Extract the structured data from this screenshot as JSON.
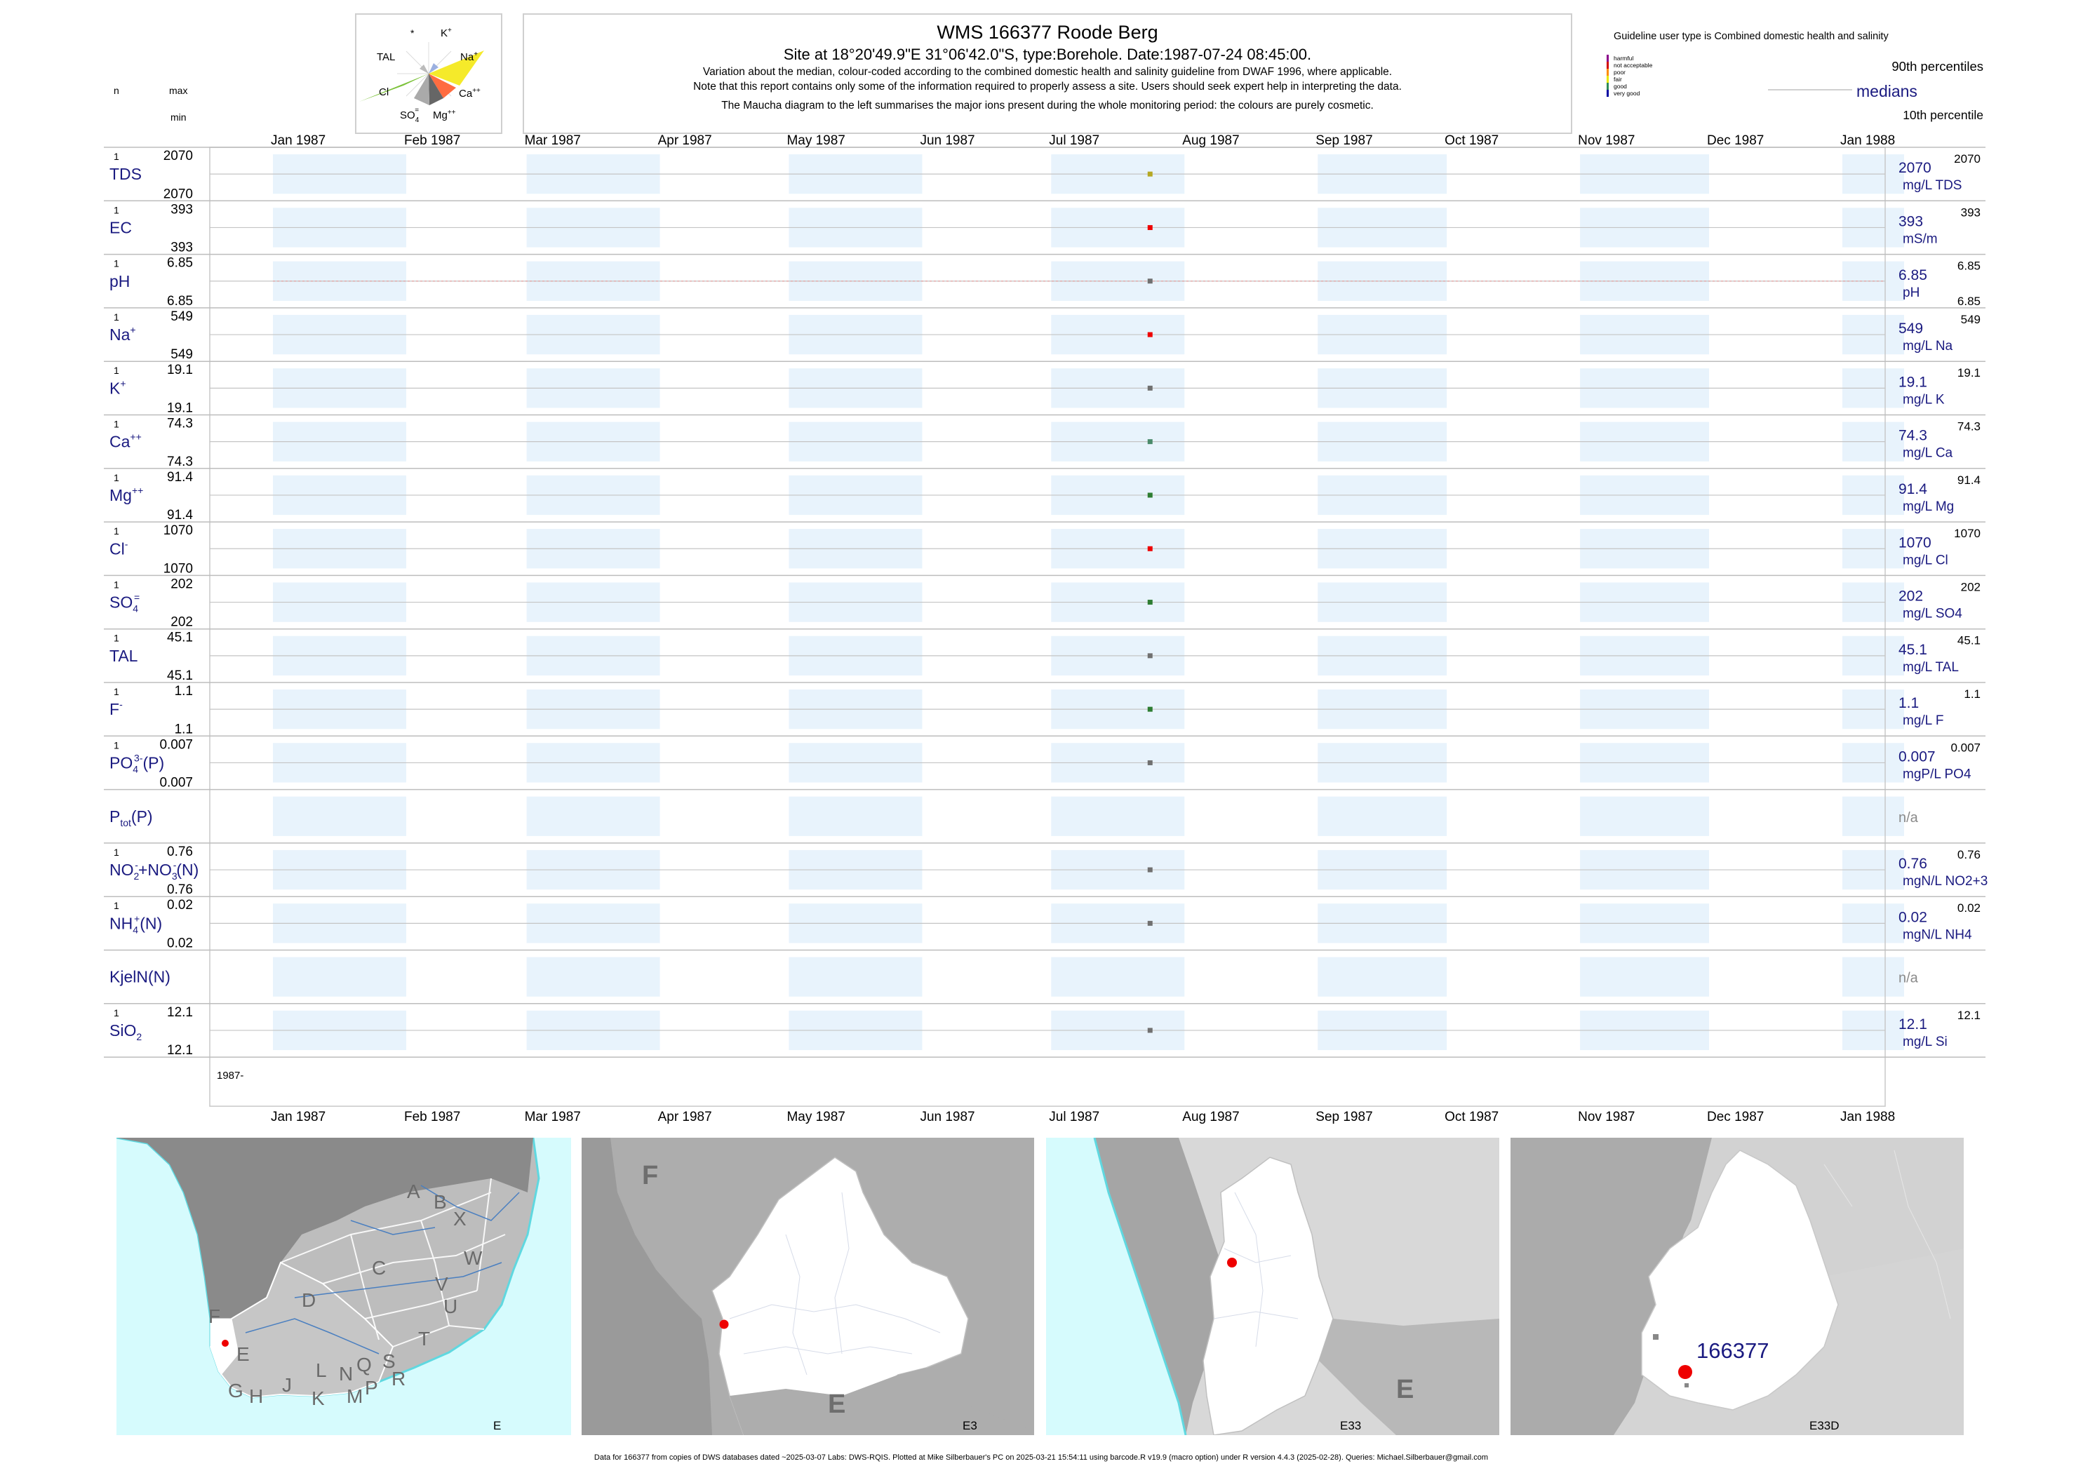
{
  "header": {
    "title": "WMS 166377  Roode Berg",
    "subtitle": "Site at 18°20'49.9\"E 31°06'42.0\"S, type:Borehole. Date:1987-07-24 08:45:00.",
    "note1": "Variation about the median,  colour-coded according to the combined domestic health and salinity guideline from DWAF 1996, where applicable.",
    "note2": "Note that this report contains only some of the information required to properly assess a site. Users should seek expert help in interpreting the data.",
    "note3": "The Maucha diagram to the left summarises the major ions present during the whole monitoring period: the colours are purely cosmetic."
  },
  "left_key": {
    "n": "n",
    "max": "max",
    "min": "min"
  },
  "maucha": {
    "labels": [
      "*",
      "K",
      "TAL",
      "Na",
      "Cl",
      "Ca",
      "SO",
      "Mg"
    ],
    "label_superscripts": {
      "K": "+",
      "Na": "+",
      "Ca": "++",
      "SO": "=",
      "Mg": "++"
    },
    "label_subscripts": {
      "SO": "4"
    }
  },
  "legend": {
    "guideline_title": "Guideline user type is Combined domestic health and salinity",
    "classes": [
      "harmful",
      "not acceptable",
      "poor",
      "fair",
      "good",
      "very good"
    ],
    "class_colors": [
      "#8b008b",
      "#d00000",
      "#ff8c00",
      "#e8e800",
      "#2e8b57",
      "#0000a0"
    ],
    "p90": "90th percentiles",
    "medians": "medians",
    "p10": "10th percentile"
  },
  "colors": {
    "band": "#e8f3fc",
    "navy": "#1a1a80",
    "grid": "#c8c8c8",
    "sea": "#d6fbfd",
    "sea_edge": "#5fd8e0",
    "land_dark": "#a8a8a8",
    "land_white": "#ffffff",
    "site": "#ee0000"
  },
  "chart_data": {
    "type": "scatter",
    "x_axis": {
      "start": "1987-01-01",
      "end": "1988-01-01",
      "tick_dates": [
        "1987-01-01",
        "1987-02-01",
        "1987-03-01",
        "1987-04-01",
        "1987-05-01",
        "1987-06-01",
        "1987-07-01",
        "1987-08-01",
        "1987-09-01",
        "1987-10-01",
        "1987-11-01",
        "1987-12-01",
        "1988-01-01"
      ],
      "tick_labels": [
        "Jan 1987",
        "Feb 1987",
        "Mar 1987",
        "Apr 1987",
        "May 1987",
        "Jun 1987",
        "Jul 1987",
        "Aug 1987",
        "Sep 1987",
        "Oct 1987",
        "Nov 1987",
        "Dec 1987",
        "Jan 1988"
      ]
    },
    "sample_date": "1987-07-24",
    "year_label": "1987-",
    "panels": [
      {
        "label": "TDS",
        "n": "1",
        "max": "2070",
        "min": "2070",
        "value": 2070,
        "value_text": "2070",
        "unit": "mg/L TDS",
        "p90": "2070",
        "p10": "",
        "color": "#b5a823",
        "ph_line": false
      },
      {
        "label": "EC",
        "n": "1",
        "max": "393",
        "min": "393",
        "value": 393,
        "value_text": "393",
        "unit": "mS/m",
        "p90": "393",
        "p10": "",
        "color": "#ee0000",
        "ph_line": false
      },
      {
        "label": "pH",
        "n": "1",
        "max": "6.85",
        "min": "6.85",
        "value": 6.85,
        "value_text": "6.85",
        "unit": "pH",
        "p90": "6.85",
        "p10": "6.85",
        "color": "#707070",
        "ph_line": true
      },
      {
        "label": "Na",
        "sup": "+",
        "n": "1",
        "max": "549",
        "min": "549",
        "value": 549,
        "value_text": "549",
        "unit": "mg/L Na",
        "p90": "549",
        "p10": "",
        "color": "#ee0000",
        "ph_line": false
      },
      {
        "label": "K",
        "sup": "+",
        "n": "1",
        "max": "19.1",
        "min": "19.1",
        "value": 19.1,
        "value_text": "19.1",
        "unit": "mg/L K",
        "p90": "19.1",
        "p10": "",
        "color": "#707070",
        "ph_line": false
      },
      {
        "label": "Ca",
        "sup": "++",
        "n": "1",
        "max": "74.3",
        "min": "74.3",
        "value": 74.3,
        "value_text": "74.3",
        "unit": "mg/L Ca",
        "p90": "74.3",
        "p10": "",
        "color": "#4a8a6a",
        "ph_line": false
      },
      {
        "label": "Mg",
        "sup": "++",
        "n": "1",
        "max": "91.4",
        "min": "91.4",
        "value": 91.4,
        "value_text": "91.4",
        "unit": "mg/L Mg",
        "p90": "91.4",
        "p10": "",
        "color": "#2e7d32",
        "ph_line": false
      },
      {
        "label": "Cl",
        "sup": "-",
        "n": "1",
        "max": "1070",
        "min": "1070",
        "value": 1070,
        "value_text": "1070",
        "unit": "mg/L Cl",
        "p90": "1070",
        "p10": "",
        "color": "#ee0000",
        "ph_line": false
      },
      {
        "label": "SO",
        "sub": "4",
        "sup": "=",
        "n": "1",
        "max": "202",
        "min": "202",
        "value": 202,
        "value_text": "202",
        "unit": "mg/L SO4",
        "p90": "202",
        "p10": "",
        "color": "#2e7d32",
        "ph_line": false
      },
      {
        "label": "TAL",
        "n": "1",
        "max": "45.1",
        "min": "45.1",
        "value": 45.1,
        "value_text": "45.1",
        "unit": "mg/L TAL",
        "p90": "45.1",
        "p10": "",
        "color": "#707070",
        "ph_line": false
      },
      {
        "label": "F",
        "sup": "-",
        "n": "1",
        "max": "1.1",
        "min": "1.1",
        "value": 1.1,
        "value_text": "1.1",
        "unit": "mg/L F",
        "p90": "1.1",
        "p10": "",
        "color": "#2e7d32",
        "ph_line": false
      },
      {
        "label": "PO",
        "sub": "4",
        "sup": "3-",
        "suffix": "(P)",
        "n": "1",
        "max": "0.007",
        "min": "0.007",
        "value": 0.007,
        "value_text": "0.007",
        "unit": "mgP/L PO4",
        "p90": "0.007",
        "p10": "",
        "color": "#707070",
        "ph_line": false
      },
      {
        "label": "P",
        "sub": "tot",
        "suffix": "(P)",
        "n": "",
        "max": "",
        "min": "",
        "value": null,
        "value_text": "n/a",
        "unit": "",
        "p90": "",
        "p10": "",
        "color": "#707070",
        "ph_line": false
      },
      {
        "label": "NO",
        "sub": "2",
        "sup": "-",
        "suffix": "+NO",
        "suffix_sub": "3",
        "suffix_sup": "-",
        "suffix2": "(N)",
        "n": "1",
        "max": "0.76",
        "min": "0.76",
        "value": 0.76,
        "value_text": "0.76",
        "unit": "mgN/L NO2+3",
        "p90": "0.76",
        "p10": "",
        "color": "#707070",
        "ph_line": false
      },
      {
        "label": "NH",
        "sub": "4",
        "sup": "+",
        "suffix": "(N)",
        "n": "1",
        "max": "0.02",
        "min": "0.02",
        "value": 0.02,
        "value_text": "0.02",
        "unit": "mgN/L NH4",
        "p90": "0.02",
        "p10": "",
        "color": "#707070",
        "ph_line": false
      },
      {
        "label": "KjelN(N)",
        "n": "",
        "max": "",
        "min": "",
        "value": null,
        "value_text": "n/a",
        "unit": "",
        "p90": "",
        "p10": "",
        "color": "#707070",
        "ph_line": false
      },
      {
        "label": "SiO",
        "sub": "2",
        "n": "1",
        "max": "12.1",
        "min": "12.1",
        "value": 12.1,
        "value_text": "12.1",
        "unit": "mg/L Si",
        "p90": "12.1",
        "p10": "",
        "color": "#707070",
        "ph_line": false
      }
    ]
  },
  "maps": {
    "map1": {
      "label": "E",
      "regions": [
        "A",
        "B",
        "X",
        "W",
        "C",
        "D",
        "V",
        "U",
        "T",
        "F",
        "E",
        "G",
        "H",
        "J",
        "K",
        "L",
        "N",
        "Q",
        "M",
        "P",
        "S",
        "R"
      ]
    },
    "map2": {
      "label": "E3",
      "regions": [
        "F",
        "E"
      ]
    },
    "map3": {
      "label": "E33",
      "regions": [
        "E"
      ]
    },
    "map4": {
      "label": "E33D",
      "site": "166377"
    }
  },
  "footer": "Data for 166377 from copies of DWS databases dated ~2025-03-07 Labs: DWS-RQIS. Plotted at Mike Silberbauer's PC on 2025-03-21 15:54:11 using barcode.R v19.9 (macro option) under R version 4.4.3 (2025-02-28). Queries: Michael.Silberbauer@gmail.com"
}
